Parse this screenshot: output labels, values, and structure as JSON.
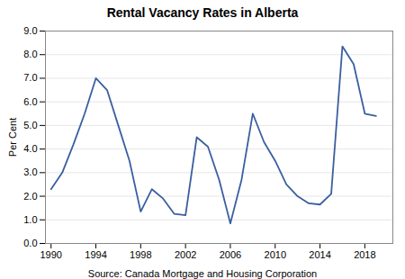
{
  "chart_data": {
    "type": "line",
    "title": "Rental Vacancy Rates in Alberta",
    "ylabel": "Per Cent",
    "source": "Source:  Canada Mortgage and Housing Corporation",
    "x": [
      1990,
      1991,
      1992,
      1993,
      1994,
      1995,
      1996,
      1997,
      1998,
      1999,
      2000,
      2001,
      2002,
      2003,
      2004,
      2005,
      2006,
      2007,
      2008,
      2009,
      2010,
      2011,
      2012,
      2013,
      2014,
      2015,
      2016,
      2017,
      2018,
      2019
    ],
    "values": [
      2.3,
      3.0,
      4.2,
      5.5,
      7.0,
      6.5,
      5.0,
      3.5,
      1.35,
      2.3,
      1.9,
      1.25,
      1.2,
      4.5,
      4.1,
      2.7,
      0.85,
      2.7,
      5.5,
      4.3,
      3.5,
      2.5,
      2.0,
      1.7,
      1.65,
      2.1,
      8.35,
      7.6,
      5.5,
      5.4
    ],
    "color": "#3a5fa0",
    "xlim": [
      1989.5,
      2020.5
    ],
    "xticks": [
      1990,
      1994,
      1998,
      2002,
      2006,
      2010,
      2014,
      2018
    ],
    "ylim": [
      0.0,
      9.0
    ],
    "yticks": [
      {
        "value": 0,
        "label": "0.0"
      },
      {
        "value": 1,
        "label": "1.0"
      },
      {
        "value": 2,
        "label": "2.0"
      },
      {
        "value": 3,
        "label": "3.0"
      },
      {
        "value": 4,
        "label": "4.0"
      },
      {
        "value": 5,
        "label": "5.0"
      },
      {
        "value": 6,
        "label": "6.0"
      },
      {
        "value": 7,
        "label": "7.0"
      },
      {
        "value": 8,
        "label": "8.0"
      },
      {
        "value": 9,
        "label": "9.0"
      }
    ],
    "grid": true
  }
}
